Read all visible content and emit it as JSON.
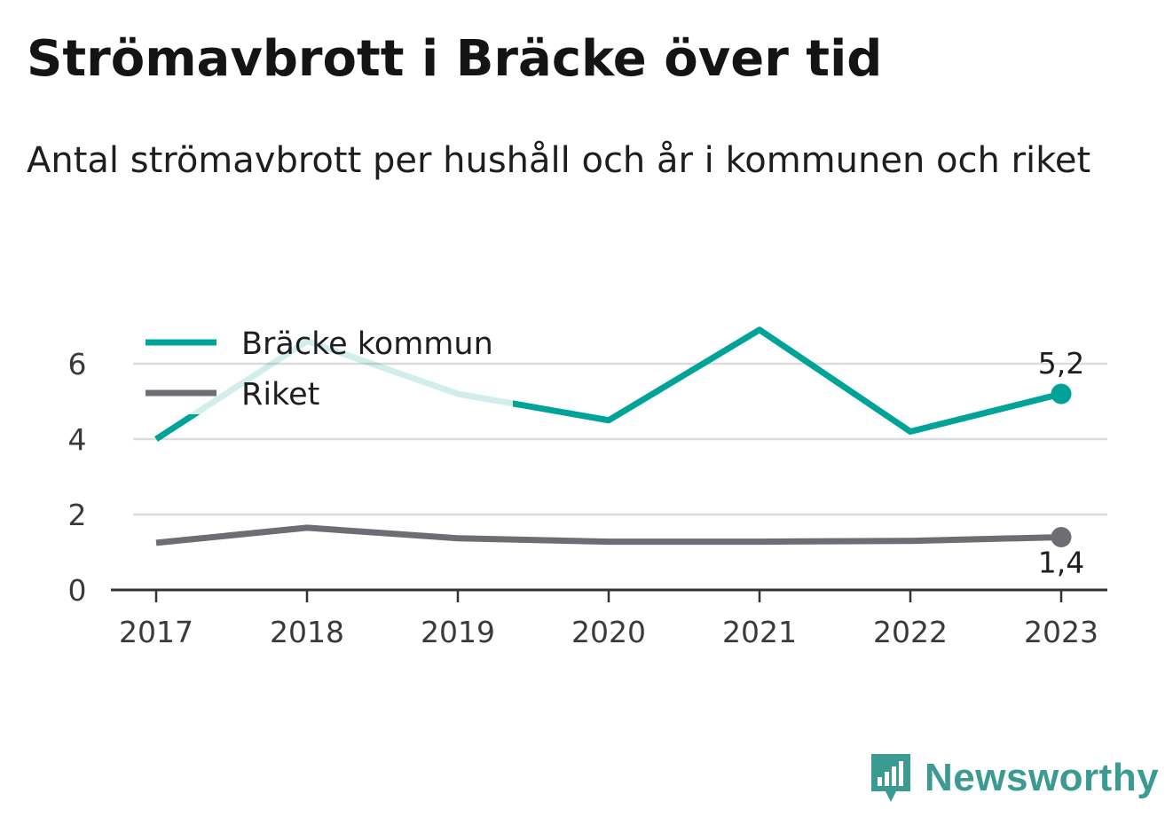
{
  "header": {
    "title": "Strömavbrott i Bräcke över tid",
    "subtitle": "Antal strömavbrott per hushåll och år i kommunen och riket"
  },
  "brand": {
    "name": "Newsworthy",
    "icon": "newsworthy-logo-icon"
  },
  "colors": {
    "bracke": "#00a398",
    "riket": "#6e6d73",
    "grid": "#dcdcdc",
    "axis": "#333333"
  },
  "chart_data": {
    "type": "line",
    "x": [
      "2017",
      "2018",
      "2019",
      "2020",
      "2021",
      "2022",
      "2023"
    ],
    "ylim": [
      0,
      7
    ],
    "yticks": [
      0,
      2,
      4,
      6
    ],
    "grid": true,
    "legend": "top-left",
    "series": [
      {
        "name": "Bräcke kommun",
        "values": [
          4.0,
          6.6,
          5.2,
          4.5,
          6.9,
          4.2,
          5.2
        ],
        "end_label": "5,2"
      },
      {
        "name": "Riket",
        "values": [
          1.25,
          1.65,
          1.37,
          1.28,
          1.28,
          1.3,
          1.4
        ],
        "end_label": "1,4"
      }
    ]
  }
}
